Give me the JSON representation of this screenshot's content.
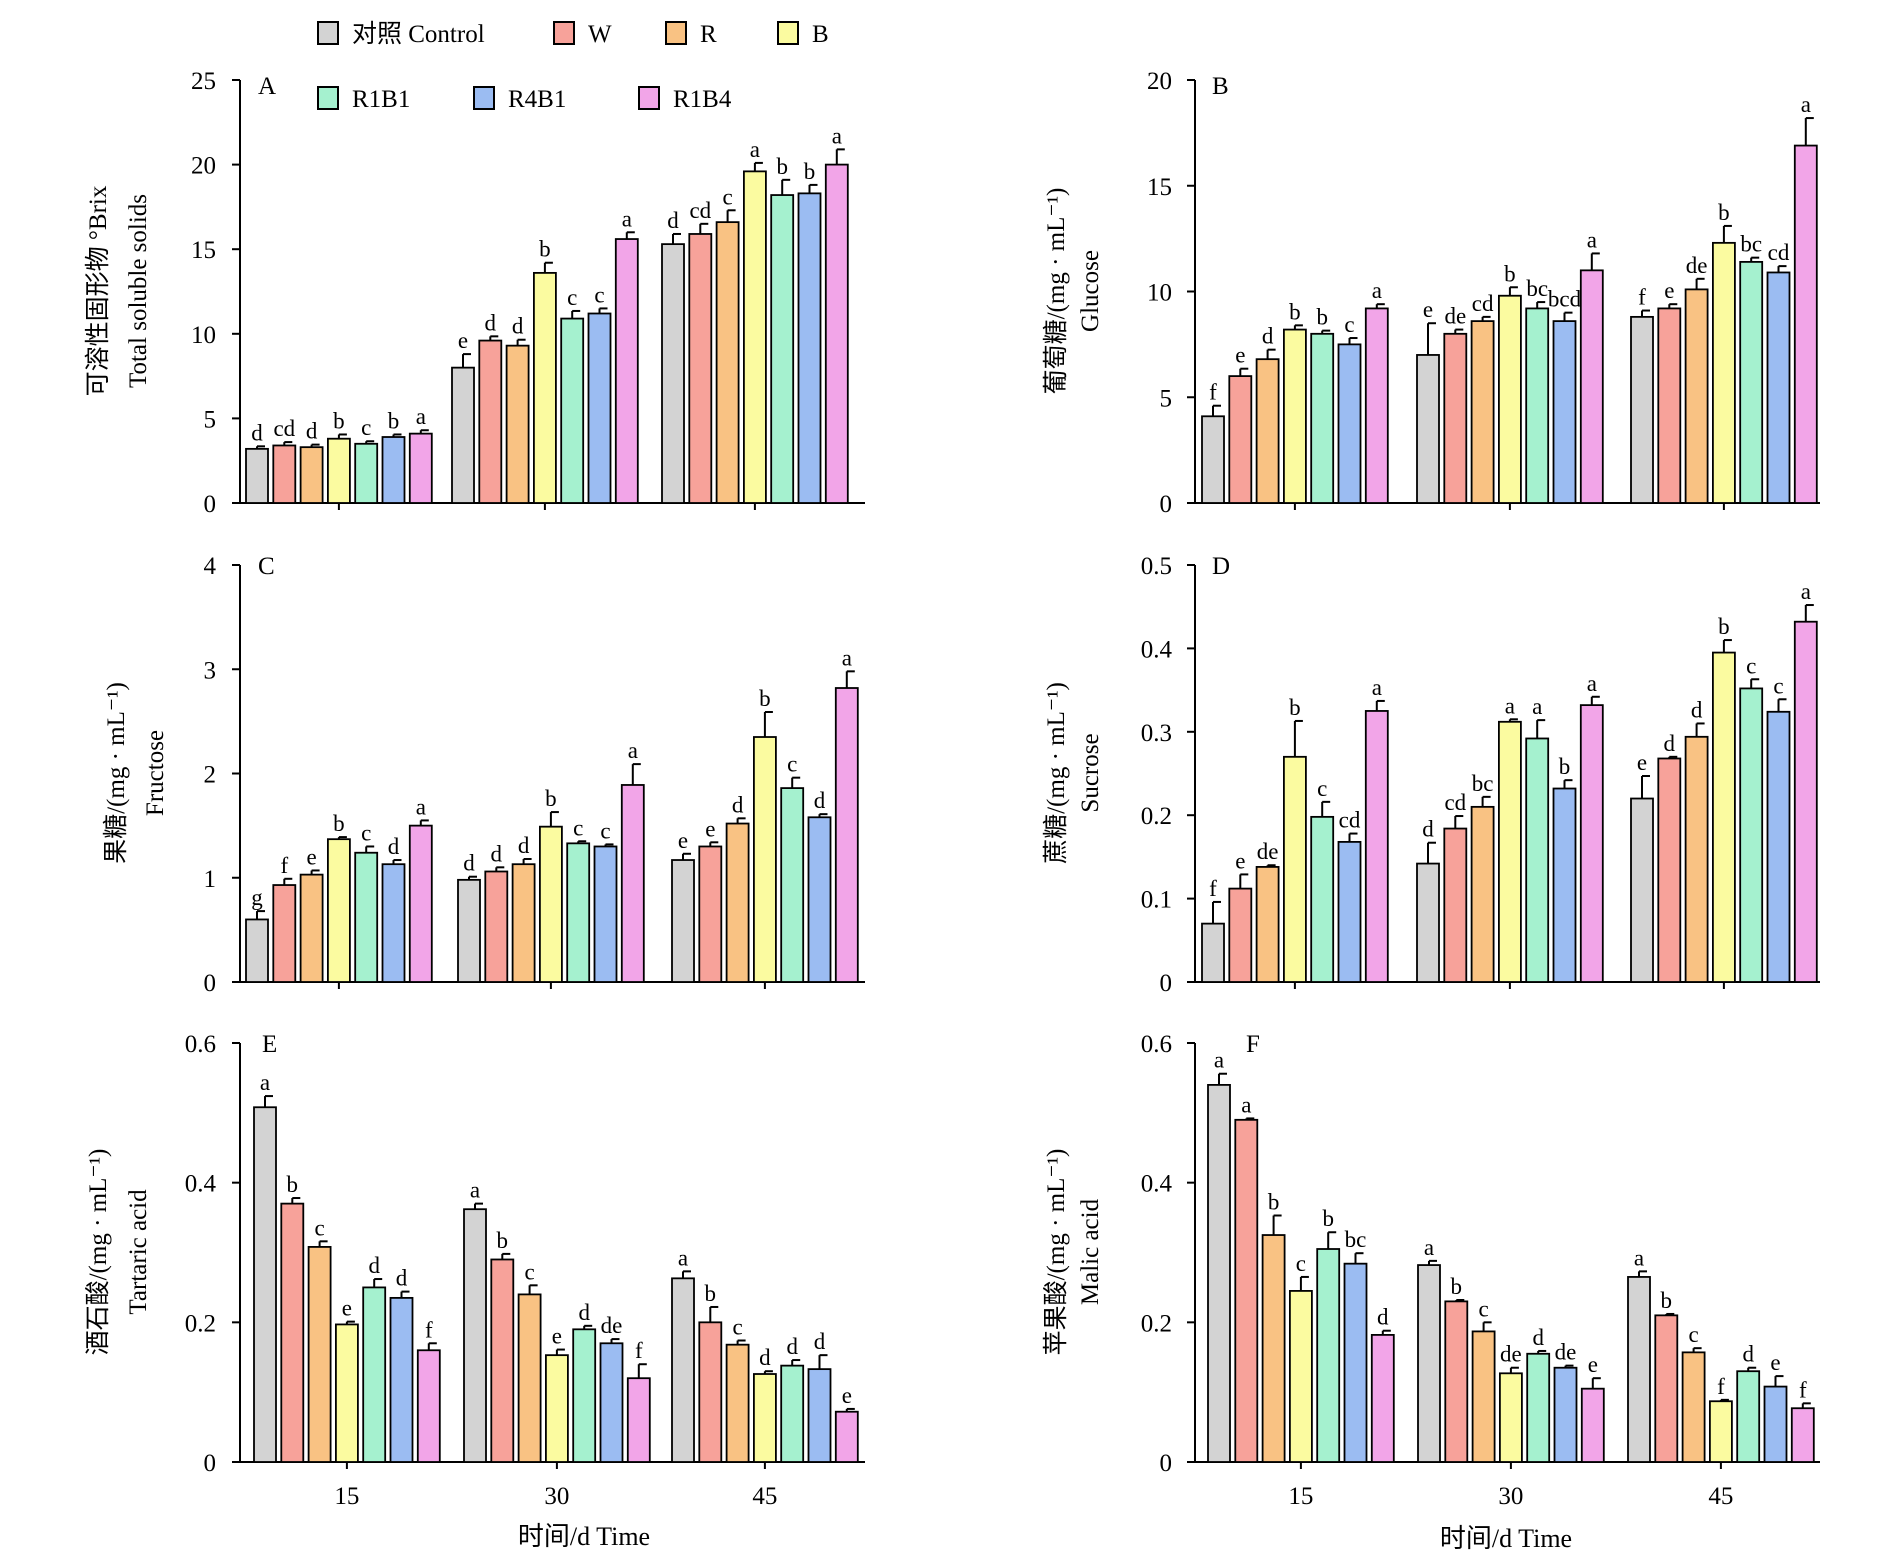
{
  "legend": [
    {
      "name": "对照 Control",
      "color": "#d3d3d3"
    },
    {
      "name": "W",
      "color": "#f7a29a"
    },
    {
      "name": "R",
      "color": "#f9c283"
    },
    {
      "name": "B",
      "color": "#fbfba0"
    },
    {
      "name": "R1B1",
      "color": "#a5f1cf"
    },
    {
      "name": "R4B1",
      "color": "#9bbcf2"
    },
    {
      "name": "R1B4",
      "color": "#f2a5e8"
    }
  ],
  "x_title": "时间/d  Time",
  "chart_data": [
    {
      "type": "bar",
      "panel": "A",
      "ylabel_cn": "可溶性固形物 °Brix",
      "ylabel_en": "Total soluble solids",
      "ylim": [
        0,
        25
      ],
      "yticks": [
        "0",
        "5",
        "10",
        "15",
        "20",
        "25"
      ],
      "categories": [
        "15",
        "30",
        "45"
      ],
      "series": [
        {
          "name": "对照 Control",
          "values": [
            3.2,
            8.0,
            15.3
          ],
          "err": [
            0.15,
            0.8,
            0.6
          ],
          "sig": [
            "d",
            "e",
            "d"
          ]
        },
        {
          "name": "W",
          "values": [
            3.4,
            9.6,
            15.9
          ],
          "err": [
            0.2,
            0.25,
            0.6
          ],
          "sig": [
            "cd",
            "d",
            "cd"
          ]
        },
        {
          "name": "R",
          "values": [
            3.3,
            9.3,
            16.6
          ],
          "err": [
            0.15,
            0.35,
            0.7
          ],
          "sig": [
            "d",
            "d",
            "c"
          ]
        },
        {
          "name": "B",
          "values": [
            3.8,
            13.6,
            19.6
          ],
          "err": [
            0.25,
            0.6,
            0.5
          ],
          "sig": [
            "b",
            "b",
            "a"
          ]
        },
        {
          "name": "R1B1",
          "values": [
            3.5,
            10.9,
            18.2
          ],
          "err": [
            0.15,
            0.45,
            0.9
          ],
          "sig": [
            "c",
            "c",
            "b"
          ]
        },
        {
          "name": "R4B1",
          "values": [
            3.9,
            11.2,
            18.3
          ],
          "err": [
            0.15,
            0.3,
            0.5
          ],
          "sig": [
            "b",
            "c",
            "b"
          ]
        },
        {
          "name": "R1B4",
          "values": [
            4.1,
            15.6,
            20.0
          ],
          "err": [
            0.2,
            0.4,
            0.9
          ],
          "sig": [
            "a",
            "a",
            "a"
          ]
        }
      ]
    },
    {
      "type": "bar",
      "panel": "B",
      "ylabel_cn": "葡萄糖/(mg · mL⁻¹)",
      "ylabel_en": "Glucose",
      "ylim": [
        0,
        20
      ],
      "yticks": [
        "0",
        "5",
        "10",
        "15",
        "20"
      ],
      "categories": [
        "15",
        "30",
        "45"
      ],
      "series": [
        {
          "name": "对照 Control",
          "values": [
            4.1,
            7.0,
            8.8
          ],
          "err": [
            0.5,
            1.5,
            0.3
          ],
          "sig": [
            "f",
            "e",
            "f"
          ]
        },
        {
          "name": "W",
          "values": [
            6.0,
            8.0,
            9.2
          ],
          "err": [
            0.35,
            0.2,
            0.2
          ],
          "sig": [
            "e",
            "de",
            "e"
          ]
        },
        {
          "name": "R",
          "values": [
            6.8,
            8.6,
            10.1
          ],
          "err": [
            0.45,
            0.2,
            0.5
          ],
          "sig": [
            "d",
            "cd",
            "de"
          ]
        },
        {
          "name": "B",
          "values": [
            8.2,
            9.8,
            12.3
          ],
          "err": [
            0.2,
            0.4,
            0.8
          ],
          "sig": [
            "b",
            "b",
            "b"
          ]
        },
        {
          "name": "R1B1",
          "values": [
            8.0,
            9.2,
            11.4
          ],
          "err": [
            0.15,
            0.3,
            0.2
          ],
          "sig": [
            "b",
            "bc",
            "bc"
          ]
        },
        {
          "name": "R4B1",
          "values": [
            7.5,
            8.6,
            10.9
          ],
          "err": [
            0.3,
            0.4,
            0.3
          ],
          "sig": [
            "c",
            "bcd",
            "cd"
          ]
        },
        {
          "name": "R1B4",
          "values": [
            9.2,
            11.0,
            16.9
          ],
          "err": [
            0.2,
            0.8,
            1.3
          ],
          "sig": [
            "a",
            "a",
            "a"
          ]
        }
      ]
    },
    {
      "type": "bar",
      "panel": "C",
      "ylabel_cn": "果糖/(mg · mL⁻¹)",
      "ylabel_en": "Fructose",
      "ylim": [
        0,
        4
      ],
      "yticks": [
        "0",
        "1",
        "2",
        "3",
        "4"
      ],
      "categories": [
        "15",
        "30",
        "45"
      ],
      "series": [
        {
          "name": "对照 Control",
          "values": [
            0.6,
            0.98,
            1.17
          ],
          "err": [
            0.08,
            0.03,
            0.06
          ],
          "sig": [
            "g",
            "d",
            "e"
          ]
        },
        {
          "name": "W",
          "values": [
            0.93,
            1.06,
            1.3
          ],
          "err": [
            0.06,
            0.04,
            0.04
          ],
          "sig": [
            "f",
            "d",
            "e"
          ]
        },
        {
          "name": "R",
          "values": [
            1.03,
            1.13,
            1.52
          ],
          "err": [
            0.04,
            0.05,
            0.05
          ],
          "sig": [
            "e",
            "d",
            "d"
          ]
        },
        {
          "name": "B",
          "values": [
            1.37,
            1.49,
            2.35
          ],
          "err": [
            0.02,
            0.14,
            0.24
          ],
          "sig": [
            "b",
            "b",
            "b"
          ]
        },
        {
          "name": "R1B1",
          "values": [
            1.24,
            1.33,
            1.86
          ],
          "err": [
            0.06,
            0.02,
            0.1
          ],
          "sig": [
            "c",
            "c",
            "c"
          ]
        },
        {
          "name": "R4B1",
          "values": [
            1.13,
            1.3,
            1.58
          ],
          "err": [
            0.04,
            0.02,
            0.03
          ],
          "sig": [
            "d",
            "c",
            "d"
          ]
        },
        {
          "name": "R1B4",
          "values": [
            1.5,
            1.89,
            2.82
          ],
          "err": [
            0.05,
            0.2,
            0.16
          ],
          "sig": [
            "a",
            "a",
            "a"
          ]
        }
      ]
    },
    {
      "type": "bar",
      "panel": "D",
      "ylabel_cn": "蔗糖/(mg · mL⁻¹)",
      "ylabel_en": "Sucrose",
      "ylim": [
        0,
        0.5
      ],
      "yticks": [
        "0",
        "0.1",
        "0.2",
        "0.3",
        "0.4",
        "0.5"
      ],
      "categories": [
        "15",
        "30",
        "45"
      ],
      "series": [
        {
          "name": "对照 Control",
          "values": [
            0.07,
            0.142,
            0.22
          ],
          "err": [
            0.026,
            0.025,
            0.027
          ],
          "sig": [
            "f",
            "d",
            "e"
          ]
        },
        {
          "name": "W",
          "values": [
            0.112,
            0.184,
            0.268
          ],
          "err": [
            0.017,
            0.015,
            0.002
          ],
          "sig": [
            "e",
            "cd",
            "d"
          ]
        },
        {
          "name": "R",
          "values": [
            0.138,
            0.21,
            0.294
          ],
          "err": [
            0.002,
            0.012,
            0.016
          ],
          "sig": [
            "de",
            "bc",
            "d"
          ]
        },
        {
          "name": "B",
          "values": [
            0.27,
            0.312,
            0.395
          ],
          "err": [
            0.043,
            0.003,
            0.015
          ],
          "sig": [
            "b",
            "a",
            "b"
          ]
        },
        {
          "name": "R1B1",
          "values": [
            0.198,
            0.292,
            0.352
          ],
          "err": [
            0.018,
            0.022,
            0.011
          ],
          "sig": [
            "c",
            "a",
            "c"
          ]
        },
        {
          "name": "R4B1",
          "values": [
            0.168,
            0.232,
            0.324
          ],
          "err": [
            0.01,
            0.01,
            0.015
          ],
          "sig": [
            "cd",
            "b",
            "c"
          ]
        },
        {
          "name": "R1B4",
          "values": [
            0.325,
            0.332,
            0.432
          ],
          "err": [
            0.012,
            0.01,
            0.02
          ],
          "sig": [
            "a",
            "a",
            "a"
          ]
        }
      ]
    },
    {
      "type": "bar",
      "panel": "E",
      "ylabel_cn": "酒石酸/(mg · mL⁻¹)",
      "ylabel_en": "Tartaric acid",
      "ylim": [
        0,
        0.6
      ],
      "yticks": [
        "0",
        "0.2",
        "0.4",
        "0.6"
      ],
      "categories": [
        "15",
        "30",
        "45"
      ],
      "series": [
        {
          "name": "对照 Control",
          "values": [
            0.508,
            0.362,
            0.263
          ],
          "err": [
            0.016,
            0.008,
            0.01
          ],
          "sig": [
            "a",
            "a",
            "a"
          ]
        },
        {
          "name": "W",
          "values": [
            0.37,
            0.29,
            0.2
          ],
          "err": [
            0.008,
            0.008,
            0.022
          ],
          "sig": [
            "b",
            "b",
            "b"
          ]
        },
        {
          "name": "R",
          "values": [
            0.308,
            0.24,
            0.168
          ],
          "err": [
            0.008,
            0.013,
            0.006
          ],
          "sig": [
            "c",
            "c",
            "c"
          ]
        },
        {
          "name": "B",
          "values": [
            0.197,
            0.153,
            0.126
          ],
          "err": [
            0.004,
            0.008,
            0.004
          ],
          "sig": [
            "e",
            "e",
            "d"
          ]
        },
        {
          "name": "R1B1",
          "values": [
            0.25,
            0.19,
            0.138
          ],
          "err": [
            0.012,
            0.005,
            0.008
          ],
          "sig": [
            "d",
            "d",
            "d"
          ]
        },
        {
          "name": "R4B1",
          "values": [
            0.235,
            0.17,
            0.133
          ],
          "err": [
            0.009,
            0.006,
            0.02
          ],
          "sig": [
            "d",
            "de",
            "d"
          ]
        },
        {
          "name": "R1B4",
          "values": [
            0.16,
            0.12,
            0.072
          ],
          "err": [
            0.01,
            0.02,
            0.004
          ],
          "sig": [
            "f",
            "f",
            "e"
          ]
        }
      ]
    },
    {
      "type": "bar",
      "panel": "F",
      "ylabel_cn": "苹果酸/(mg · mL⁻¹)",
      "ylabel_en": "Malic acid",
      "ylim": [
        0,
        0.6
      ],
      "yticks": [
        "0",
        "0.2",
        "0.4",
        "0.6"
      ],
      "categories": [
        "15",
        "30",
        "45"
      ],
      "series": [
        {
          "name": "对照 Control",
          "values": [
            0.54,
            0.282,
            0.265
          ],
          "err": [
            0.016,
            0.006,
            0.008
          ],
          "sig": [
            "a",
            "a",
            "a"
          ]
        },
        {
          "name": "W",
          "values": [
            0.49,
            0.23,
            0.21
          ],
          "err": [
            0.002,
            0.002,
            0.002
          ],
          "sig": [
            "a",
            "b",
            "b"
          ]
        },
        {
          "name": "R",
          "values": [
            0.325,
            0.187,
            0.157
          ],
          "err": [
            0.028,
            0.013,
            0.006
          ],
          "sig": [
            "b",
            "c",
            "c"
          ]
        },
        {
          "name": "B",
          "values": [
            0.245,
            0.127,
            0.087
          ],
          "err": [
            0.02,
            0.008,
            0.002
          ],
          "sig": [
            "c",
            "de",
            "f"
          ]
        },
        {
          "name": "R1B1",
          "values": [
            0.305,
            0.155,
            0.13
          ],
          "err": [
            0.024,
            0.004,
            0.005
          ],
          "sig": [
            "b",
            "d",
            "d"
          ]
        },
        {
          "name": "R4B1",
          "values": [
            0.284,
            0.135,
            0.108
          ],
          "err": [
            0.015,
            0.003,
            0.015
          ],
          "sig": [
            "bc",
            "de",
            "e"
          ]
        },
        {
          "name": "R1B4",
          "values": [
            0.182,
            0.105,
            0.077
          ],
          "err": [
            0.006,
            0.015,
            0.007
          ],
          "sig": [
            "d",
            "e",
            "f"
          ]
        }
      ]
    }
  ]
}
